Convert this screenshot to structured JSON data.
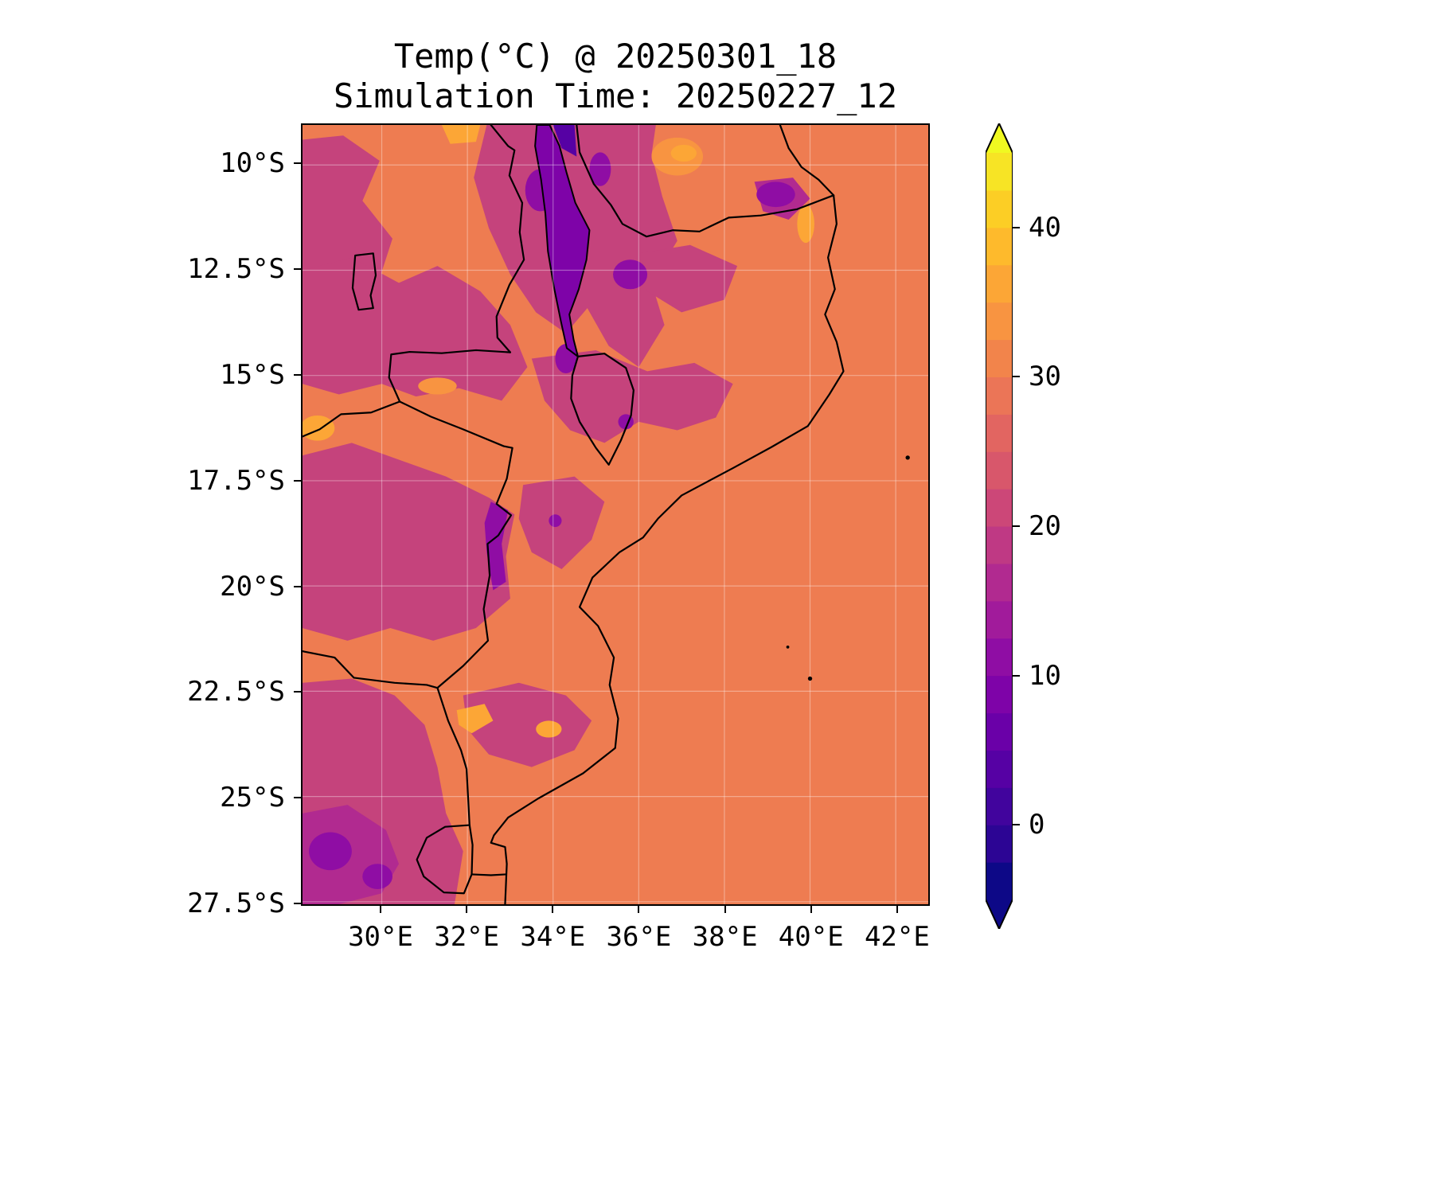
{
  "page": {
    "background": "#ffffff"
  },
  "header": {
    "title_line1": "Temp(°C) @ 20250301_18",
    "title_line2": "Simulation Time: 20250227_12"
  },
  "chart_data": {
    "type": "heatmap",
    "title": "Temp(°C) @ 20250301_18",
    "subtitle": "Simulation Time: 20250227_12",
    "variable": "Temp",
    "units": "°C",
    "valid_time_label": "20250301_18",
    "simulation_time_label": "20250227_12",
    "colormap": "plasma",
    "region": "Mozambique and surrounding southeastern Africa with Indian Ocean",
    "grid_on": true,
    "x_axis": {
      "label": "",
      "range": [
        28.15,
        42.76
      ],
      "ticks": [
        {
          "label": "30°E",
          "value": 30
        },
        {
          "label": "32°E",
          "value": 32
        },
        {
          "label": "34°E",
          "value": 34
        },
        {
          "label": "36°E",
          "value": 36
        },
        {
          "label": "38°E",
          "value": 38
        },
        {
          "label": "40°E",
          "value": 40
        },
        {
          "label": "42°E",
          "value": 42
        }
      ]
    },
    "y_axis": {
      "label": "",
      "range": [
        9.05,
        27.56
      ],
      "ticks": [
        {
          "label": "10°S",
          "value": 10
        },
        {
          "label": "12.5°S",
          "value": 12.5
        },
        {
          "label": "15°S",
          "value": 15
        },
        {
          "label": "17.5°S",
          "value": 17.5
        },
        {
          "label": "20°S",
          "value": 20
        },
        {
          "label": "22.5°S",
          "value": 22.5
        },
        {
          "label": "25°S",
          "value": 25
        },
        {
          "label": "27.5°S",
          "value": 27.5
        }
      ]
    },
    "colorbar": {
      "vmin": -5,
      "vmax": 45,
      "band_step": 2.5,
      "ticks": [
        {
          "label": "40",
          "value": 40
        },
        {
          "label": "30",
          "value": 30
        },
        {
          "label": "20",
          "value": 20
        },
        {
          "label": "10",
          "value": 10
        },
        {
          "label": "0",
          "value": 0
        }
      ],
      "band_colors_bottom_to_top": [
        "#0d0887",
        "#2c0594",
        "#41049d",
        "#5601a4",
        "#6a00a8",
        "#7e03a8",
        "#8f0da4",
        "#a11b9b",
        "#b12a90",
        "#bf3984",
        "#cc4778",
        "#d8576b",
        "#e26561",
        "#eb7557",
        "#f2844b",
        "#f89441",
        "#fca636",
        "#feba2c",
        "#fcce25",
        "#f7e425"
      ],
      "extend_over_color": "#f0f921",
      "extend_under_color": "#0d0887"
    },
    "field_regions": [
      {
        "area": "Indian Ocean and coastal lowlands (uniform background)",
        "approx_temp_c": 27
      },
      {
        "area": "Zambia / Zimbabwe plateau (west)",
        "approx_temp_c": 22
      },
      {
        "area": "Northern Mozambique / Niassa highlands",
        "approx_temp_c": 22
      },
      {
        "area": "Lake Malawi trough and Nyika highlands (north)",
        "approx_temp_c": 13
      },
      {
        "area": "Zimbabwe eastern highlands strip",
        "approx_temp_c": 15
      },
      {
        "area": "Drakensberg / southwest corner highlands",
        "approx_temp_c": 15
      },
      {
        "area": "Luangwa and Zambezi valley hot spots",
        "approx_temp_c": 33
      },
      {
        "area": "Limpopo lowveld hot spots (south)",
        "approx_temp_c": 32
      }
    ]
  },
  "colors": {
    "map_base": "#ee7c51",
    "magenta": "#c5437c",
    "magenta_deep": "#b12a90",
    "purple": "#8f0da4",
    "purple_deep": "#7e03a8",
    "indigo": "#5601a4",
    "warm_yellow": "#fca636",
    "warm_orange": "#f89441",
    "border": "#000000",
    "grid": "rgba(255,255,255,0.35)"
  }
}
